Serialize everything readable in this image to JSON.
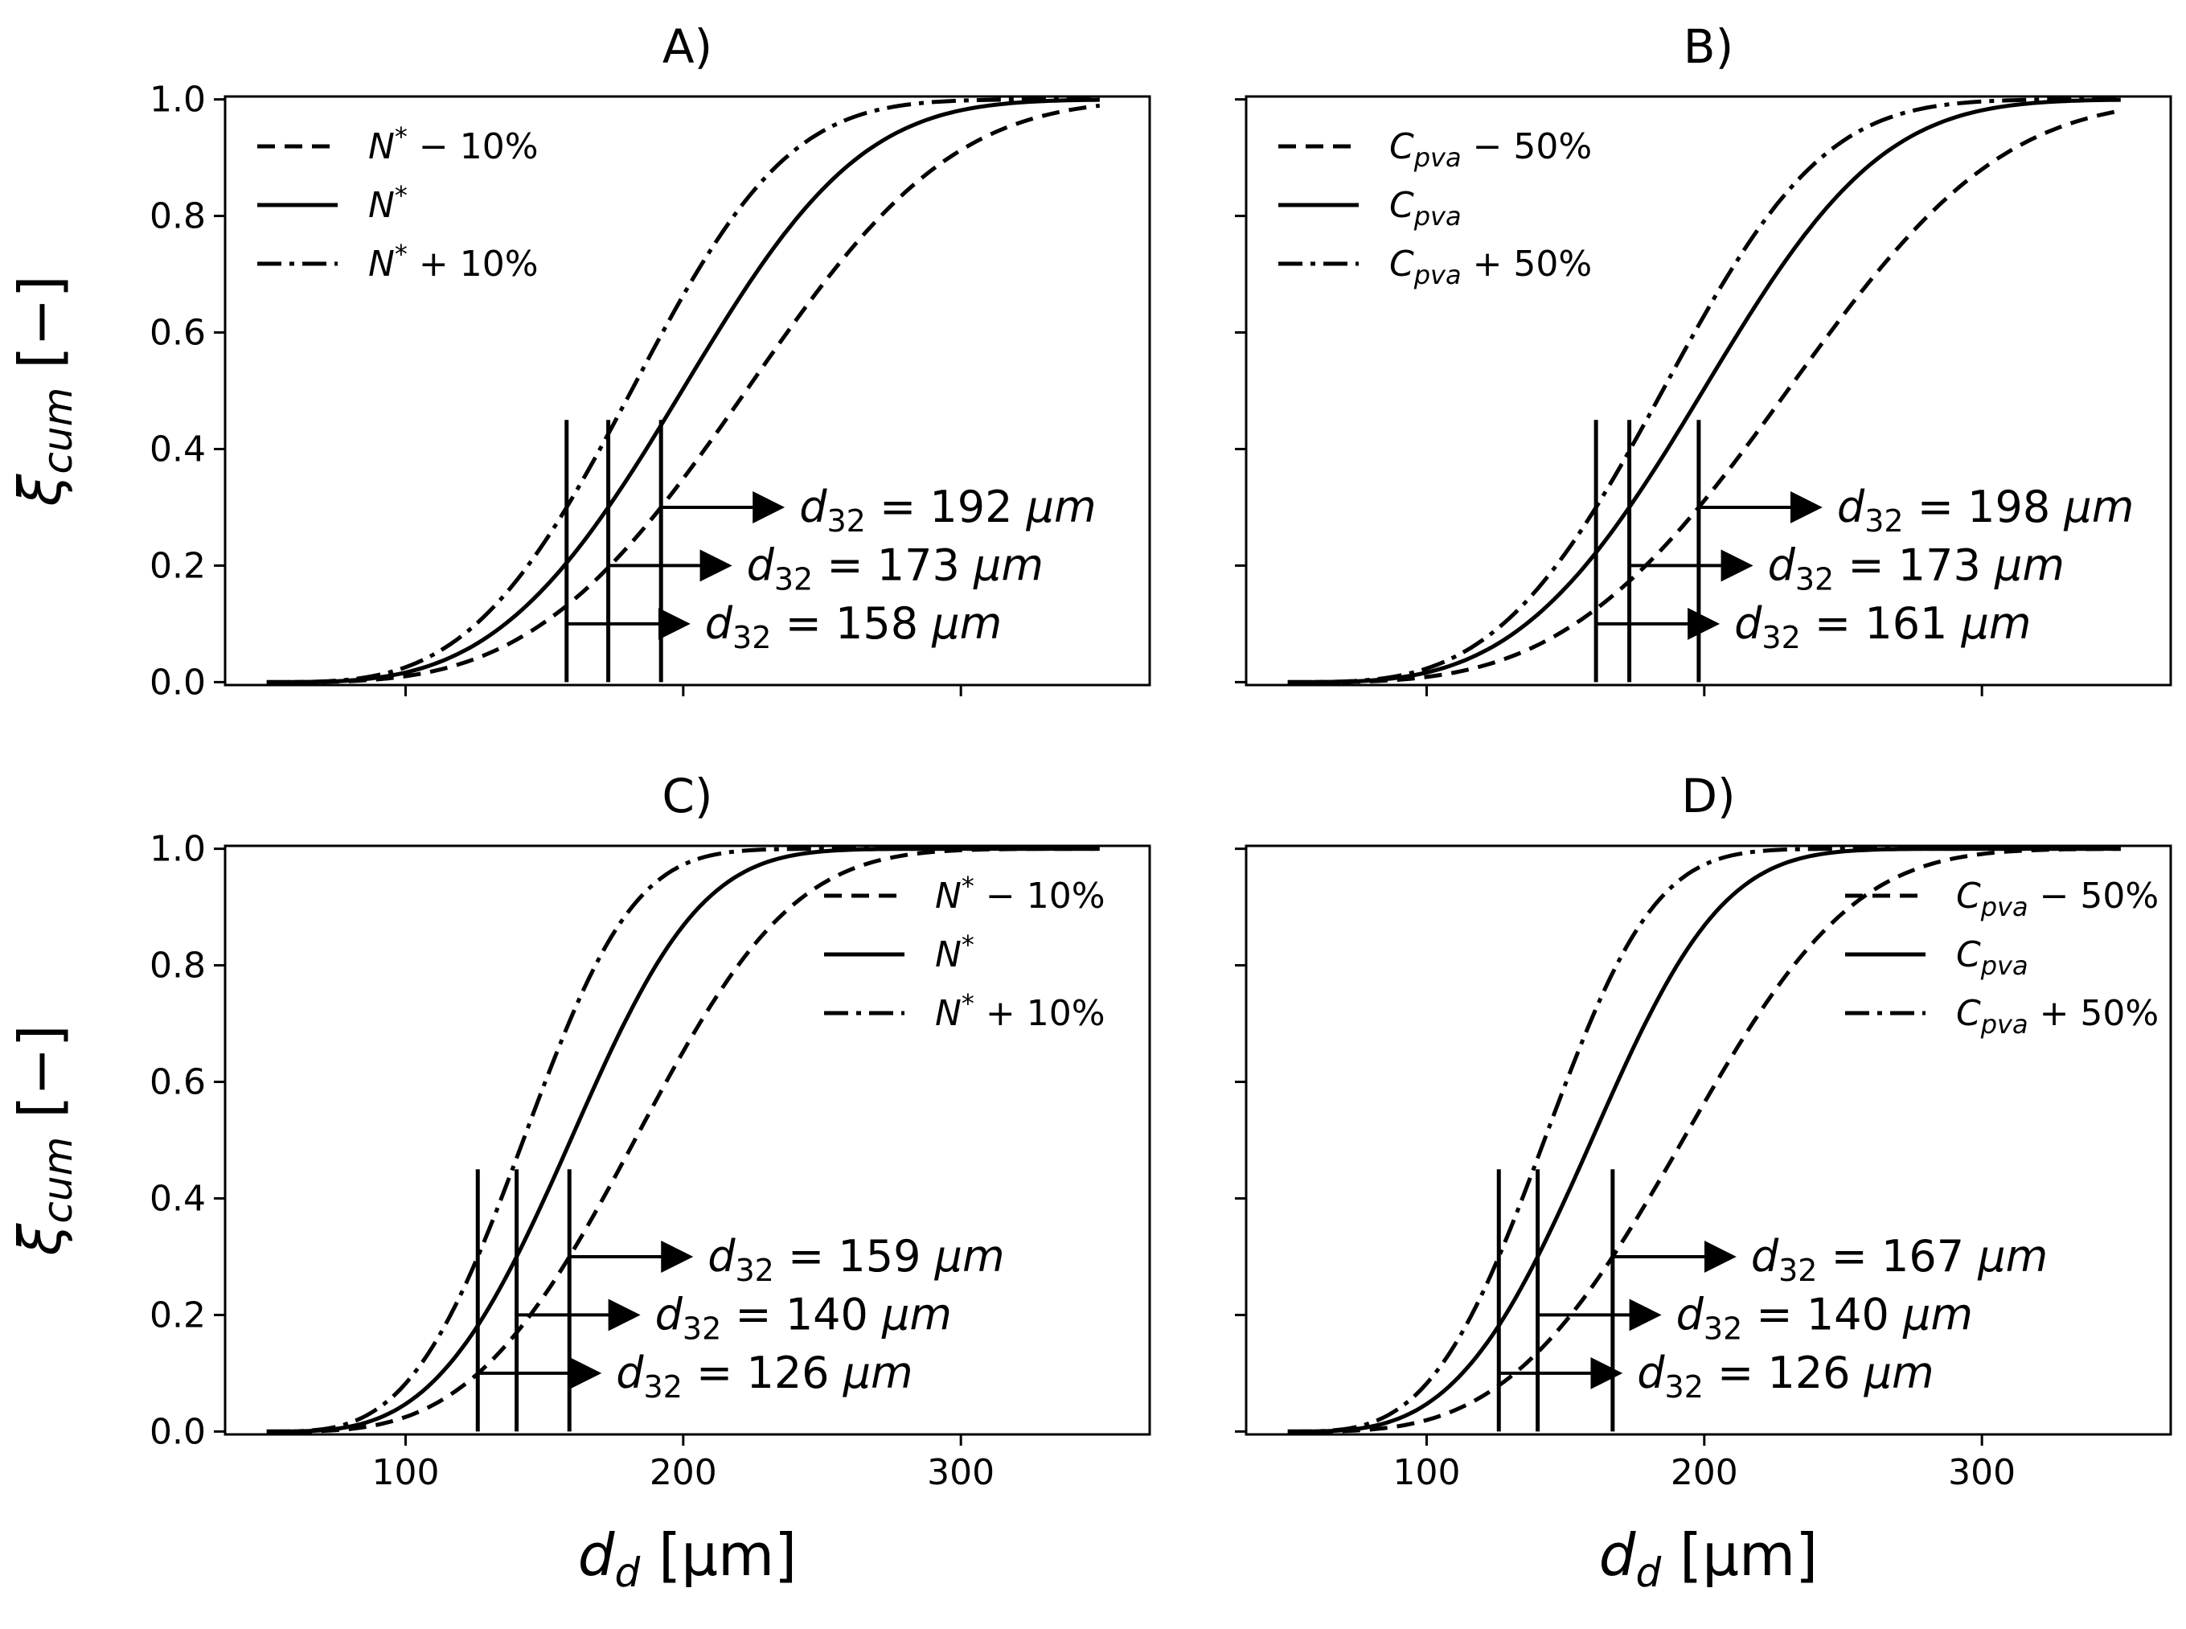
{
  "chart_data": [
    {
      "panel": "A)",
      "type": "line",
      "xlabel_main": "d",
      "xlabel_sub": "d",
      "xlabel_unit": "[μm]",
      "ylabel_main": "ξ",
      "ylabel_sub": "cum",
      "ylabel_unit": "[−]",
      "xlim": [
        35,
        368
      ],
      "ylim": [
        -0.005,
        1.005
      ],
      "x_ticks": [
        100,
        200,
        300
      ],
      "y_ticks": [
        0.0,
        0.2,
        0.4,
        0.6,
        0.8,
        1.0
      ],
      "y_tick_labels": [
        "0.0",
        "0.2",
        "0.4",
        "0.6",
        "0.8",
        "1.0"
      ],
      "show_x_tick_labels": false,
      "legend_position": "upper-left",
      "series": [
        {
          "style": "dashed",
          "legend_base": "N*",
          "legend_suffix": " − 10%",
          "d32": 192,
          "d32_label": "= 192 μm",
          "d32_sub": "32",
          "arrow_y": 0.3
        },
        {
          "style": "solid",
          "legend_base": "N*",
          "legend_suffix": "",
          "d32": 173,
          "d32_label": "= 173 μm",
          "d32_sub": "32",
          "arrow_y": 0.2
        },
        {
          "style": "dashdot",
          "legend_base": "N*",
          "legend_suffix": " + 10%",
          "d32": 158,
          "d32_label": "= 158 μm",
          "d32_sub": "32",
          "arrow_y": 0.1
        }
      ]
    },
    {
      "panel": "B)",
      "type": "line",
      "xlabel_main": "d",
      "xlabel_sub": "d",
      "xlabel_unit": "[μm]",
      "ylabel_main": "ξ",
      "ylabel_sub": "cum",
      "ylabel_unit": "[−]",
      "xlim": [
        35,
        368
      ],
      "ylim": [
        -0.005,
        1.005
      ],
      "x_ticks": [
        100,
        200,
        300
      ],
      "y_ticks": [
        0.0,
        0.2,
        0.4,
        0.6,
        0.8,
        1.0
      ],
      "show_x_tick_labels": false,
      "show_y_tick_labels": false,
      "legend_position": "upper-left",
      "series": [
        {
          "style": "dashed",
          "legend_base": "C",
          "legend_sub": "pva",
          "legend_suffix": " − 50%",
          "d32": 198,
          "d32_label": "= 198 μm",
          "d32_sub": "32",
          "arrow_y": 0.3
        },
        {
          "style": "solid",
          "legend_base": "C",
          "legend_sub": "pva",
          "legend_suffix": "",
          "d32": 173,
          "d32_label": "= 173 μm",
          "d32_sub": "32",
          "arrow_y": 0.2
        },
        {
          "style": "dashdot",
          "legend_base": "C",
          "legend_sub": "pva",
          "legend_suffix": " + 50%",
          "d32": 161,
          "d32_label": "= 161 μm",
          "d32_sub": "32",
          "arrow_y": 0.1
        }
      ]
    },
    {
      "panel": "C)",
      "type": "line",
      "xlabel_main": "d",
      "xlabel_sub": "d",
      "xlabel_unit": "[μm]",
      "ylabel_main": "ξ",
      "ylabel_sub": "cum",
      "ylabel_unit": "[−]",
      "xlim": [
        35,
        368
      ],
      "ylim": [
        -0.005,
        1.005
      ],
      "x_ticks": [
        100,
        200,
        300
      ],
      "x_tick_labels": [
        "100",
        "200",
        "300"
      ],
      "y_ticks": [
        0.0,
        0.2,
        0.4,
        0.6,
        0.8,
        1.0
      ],
      "y_tick_labels": [
        "0.0",
        "0.2",
        "0.4",
        "0.6",
        "0.8",
        "1.0"
      ],
      "legend_position": "upper-right",
      "series": [
        {
          "style": "dashed",
          "legend_base": "N*",
          "legend_suffix": " − 10%",
          "d32": 159,
          "d32_label": "= 159 μm",
          "d32_sub": "32",
          "arrow_y": 0.3
        },
        {
          "style": "solid",
          "legend_base": "N*",
          "legend_suffix": "",
          "d32": 140,
          "d32_label": "= 140 μm",
          "d32_sub": "32",
          "arrow_y": 0.2
        },
        {
          "style": "dashdot",
          "legend_base": "N*",
          "legend_suffix": " + 10%",
          "d32": 126,
          "d32_label": "= 126 μm",
          "d32_sub": "32",
          "arrow_y": 0.1
        }
      ]
    },
    {
      "panel": "D)",
      "type": "line",
      "xlabel_main": "d",
      "xlabel_sub": "d",
      "xlabel_unit": "[μm]",
      "ylabel_main": "ξ",
      "ylabel_sub": "cum",
      "ylabel_unit": "[−]",
      "xlim": [
        35,
        368
      ],
      "ylim": [
        -0.005,
        1.005
      ],
      "x_ticks": [
        100,
        200,
        300
      ],
      "x_tick_labels": [
        "100",
        "200",
        "300"
      ],
      "y_ticks": [
        0.0,
        0.2,
        0.4,
        0.6,
        0.8,
        1.0
      ],
      "show_y_tick_labels": false,
      "legend_position": "upper-right",
      "series": [
        {
          "style": "dashed",
          "legend_base": "C",
          "legend_sub": "pva",
          "legend_suffix": " − 50%",
          "d32": 167,
          "d32_label": "= 167 μm",
          "d32_sub": "32",
          "arrow_y": 0.3
        },
        {
          "style": "solid",
          "legend_base": "C",
          "legend_sub": "pva",
          "legend_suffix": "",
          "d32": 140,
          "d32_label": "= 140 μm",
          "d32_sub": "32",
          "arrow_y": 0.2
        },
        {
          "style": "dashdot",
          "legend_base": "C",
          "legend_sub": "pva",
          "legend_suffix": " + 50%",
          "d32": 126,
          "d32_label": "= 126 μm",
          "d32_sub": "32",
          "arrow_y": 0.1
        }
      ]
    }
  ],
  "curve_model": {
    "description": "cumulative distribution; value at d32 ≈ 0.3",
    "x_start": 50,
    "x_end": 350,
    "shape_k": 3.4,
    "value_at_d32": 0.3,
    "marker_top": 0.45
  }
}
